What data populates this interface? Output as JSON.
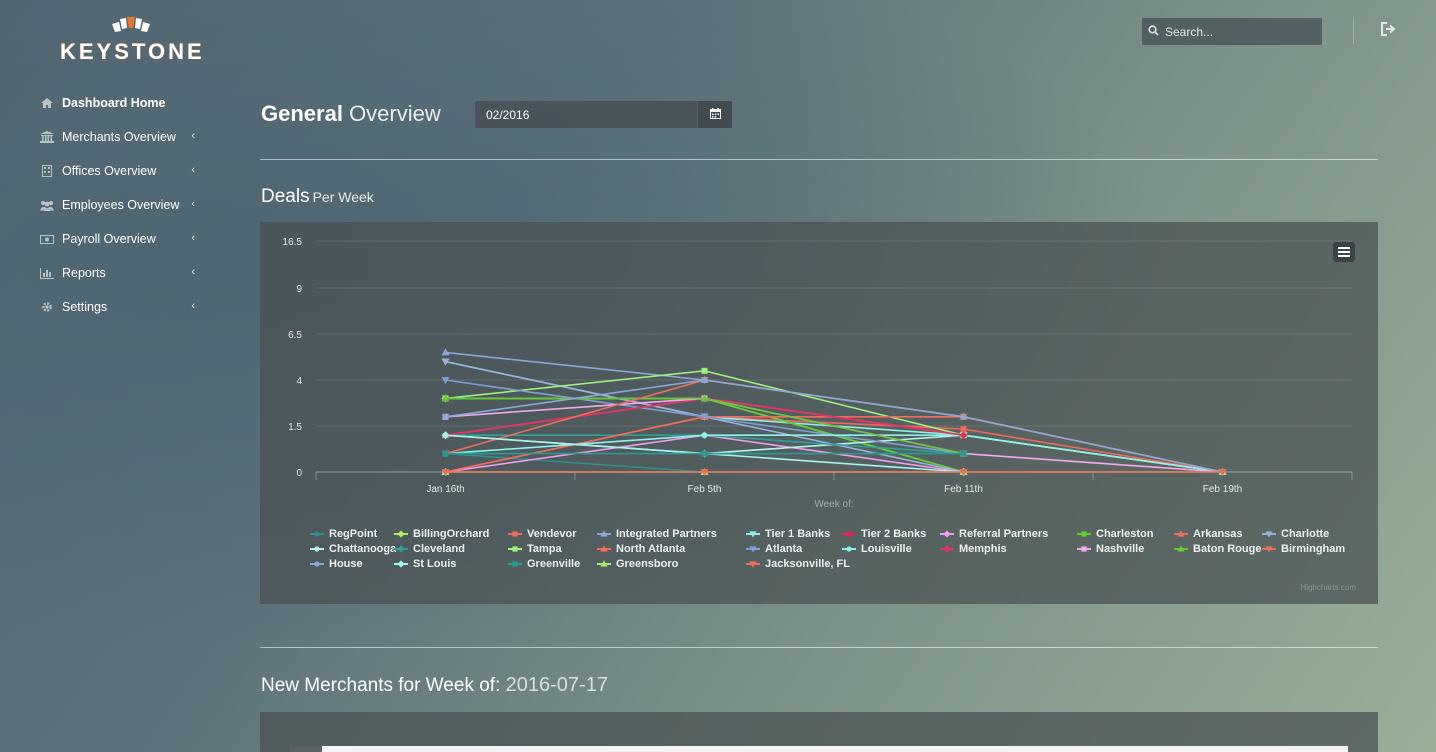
{
  "brand": {
    "name": "KEYSTONE",
    "accent": "#e8792b"
  },
  "header": {
    "search_placeholder": "Search...",
    "search_icon": "search-icon",
    "logout_icon": "sign-out-icon"
  },
  "sidebar": {
    "items": [
      {
        "label": "Dashboard Home",
        "icon": "home-icon",
        "chevron": false,
        "active": true
      },
      {
        "label": "Merchants Overview",
        "icon": "bank-icon",
        "chevron": true
      },
      {
        "label": "Offices Overview",
        "icon": "building-icon",
        "chevron": true
      },
      {
        "label": "Employees Overview",
        "icon": "users-icon",
        "chevron": true
      },
      {
        "label": "Payroll Overview",
        "icon": "money-icon",
        "chevron": true
      },
      {
        "label": "Reports",
        "icon": "bar-chart-icon",
        "chevron": true
      },
      {
        "label": "Settings",
        "icon": "gear-icon",
        "chevron": true
      }
    ]
  },
  "page": {
    "title_bold": "General",
    "title_light": "Overview",
    "date_value": "02/2016",
    "calendar_icon": "calendar-icon"
  },
  "deals": {
    "title": "Deals",
    "subtitle": "Per Week",
    "menu_icon": "hamburger-menu-icon",
    "credit": "Highcharts.com"
  },
  "merchants": {
    "title": "New Merchants for Week of:",
    "date": "2016-07-17"
  },
  "chart_data": {
    "type": "line",
    "xlabel": "Week of:",
    "ylabel": "",
    "categories": [
      "Jan 16th",
      "Feb 5th",
      "Feb 11th",
      "Feb 19th"
    ],
    "y_ticks": [
      "0",
      "1.5",
      "4",
      "6.5",
      "9",
      "16.5"
    ],
    "grid": true,
    "legend_position": "bottom",
    "series": [
      {
        "name": "RegPoint",
        "color": "#2f8f8a",
        "marker": "circle",
        "values": [
          0.6,
          0,
          null,
          null
        ]
      },
      {
        "name": "BillingOrchard",
        "color": "#a9ee62",
        "marker": "diamond",
        "values": [
          3,
          3,
          0,
          null
        ]
      },
      {
        "name": "Vendevor",
        "color": "#f0675c",
        "marker": "square",
        "values": [
          0,
          2,
          1.4,
          0
        ]
      },
      {
        "name": "Integrated Partners",
        "color": "#8aa6d6",
        "marker": "triangle",
        "values": [
          5.5,
          4,
          2,
          0
        ]
      },
      {
        "name": "Tier 1 Banks",
        "color": "#8ef0e6",
        "marker": "triangle-down",
        "values": [
          5,
          2,
          1.2,
          0
        ]
      },
      {
        "name": "Tier 2 Banks",
        "color": "#ef1c5a",
        "marker": "circle",
        "values": [
          1.2,
          3,
          1.2,
          null
        ]
      },
      {
        "name": "Referral Partners",
        "color": "#f29cf0",
        "marker": "diamond",
        "values": [
          0,
          1.2,
          0,
          null
        ]
      },
      {
        "name": "Charleston",
        "color": "#5fd12e",
        "marker": "square",
        "values": [
          3,
          3,
          0,
          null
        ]
      },
      {
        "name": "Arkansas",
        "color": "#e8735a",
        "marker": "triangle",
        "values": [
          1.2,
          3,
          1.2,
          null
        ]
      },
      {
        "name": "Charlotte",
        "color": "#9ab0dc",
        "marker": "triangle-down",
        "values": [
          5,
          2,
          0,
          null
        ]
      },
      {
        "name": "Chattanooga",
        "color": "#b8f2ee",
        "marker": "circle",
        "values": [
          1.2,
          0.6,
          1.2,
          0
        ]
      },
      {
        "name": "Cleveland",
        "color": "#2fa09a",
        "marker": "diamond",
        "values": [
          1.2,
          1.2,
          0.6,
          null
        ]
      },
      {
        "name": "Tampa",
        "color": "#9ef07c",
        "marker": "square",
        "values": [
          3,
          4.5,
          1.2,
          0
        ]
      },
      {
        "name": "North Atlanta",
        "color": "#f36b5c",
        "marker": "triangle",
        "values": [
          0,
          2,
          2,
          0
        ]
      },
      {
        "name": "Atlanta",
        "color": "#7f9ed0",
        "marker": "triangle-down",
        "values": [
          4,
          2,
          0.6,
          null
        ]
      },
      {
        "name": "Louisville",
        "color": "#8ff2ea",
        "marker": "circle",
        "values": [
          0.6,
          1.2,
          1.2,
          0
        ]
      },
      {
        "name": "Memphis",
        "color": "#e5306a",
        "marker": "diamond",
        "values": [
          1.2,
          3,
          1.2,
          null
        ]
      },
      {
        "name": "Nashville",
        "color": "#f2a8ee",
        "marker": "square",
        "values": [
          2,
          3,
          0.6,
          0
        ]
      },
      {
        "name": "Baton Rouge",
        "color": "#66c836",
        "marker": "triangle",
        "values": [
          3,
          3,
          0.6,
          null
        ]
      },
      {
        "name": "Birmingham",
        "color": "#ec6f5d",
        "marker": "triangle-down",
        "values": [
          0.6,
          4,
          2,
          0
        ]
      },
      {
        "name": "House",
        "color": "#8aa8d8",
        "marker": "circle",
        "values": [
          2,
          4,
          2,
          0
        ]
      },
      {
        "name": "St Louis",
        "color": "#a6f2ec",
        "marker": "diamond",
        "values": [
          1.2,
          0.6,
          0,
          null
        ]
      },
      {
        "name": "Greenville",
        "color": "#2b9994",
        "marker": "square",
        "values": [
          0.6,
          0.6,
          0.6,
          null
        ]
      },
      {
        "name": "Greensboro",
        "color": "#a3ec6a",
        "marker": "triangle",
        "values": [
          0,
          0,
          0,
          0
        ]
      },
      {
        "name": "Jacksonville, FL",
        "color": "#ee6c5c",
        "marker": "triangle-down",
        "values": [
          0,
          0,
          0,
          0
        ]
      }
    ]
  }
}
